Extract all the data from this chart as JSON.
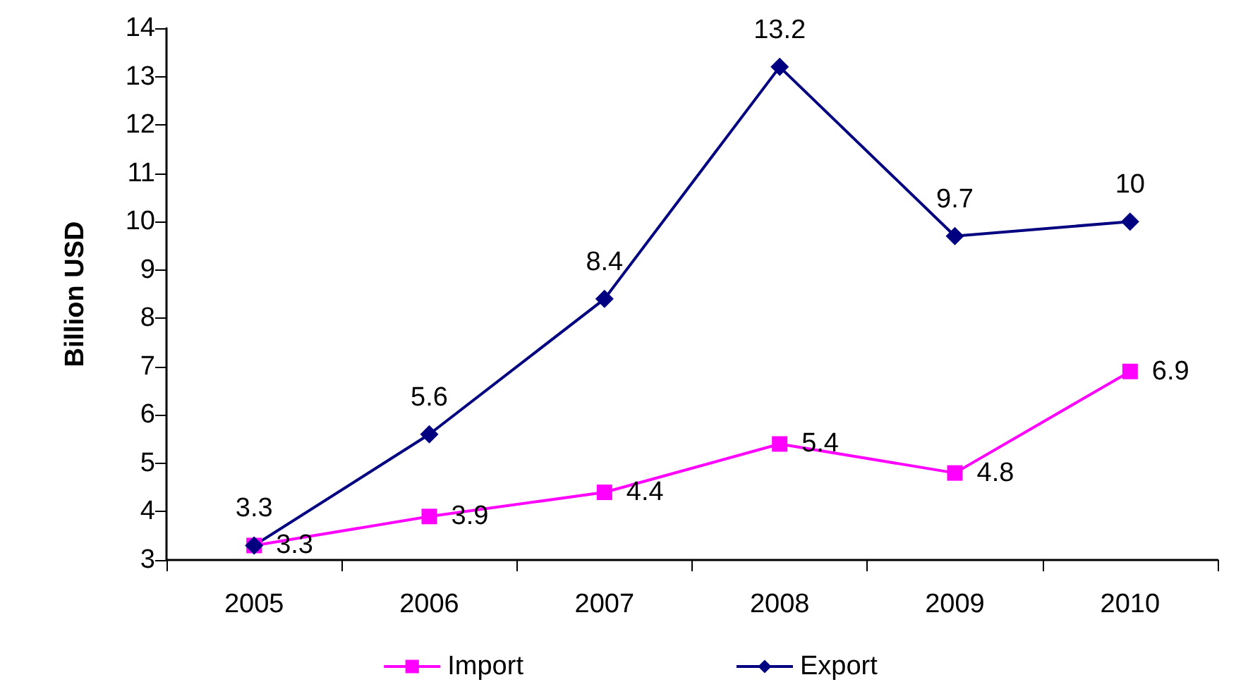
{
  "chart_data": {
    "type": "line",
    "ylabel": "Billion USD",
    "categories": [
      "2005",
      "2006",
      "2007",
      "2008",
      "2009",
      "2010"
    ],
    "series": [
      {
        "name": "Import",
        "color": "#ff00ff",
        "marker": "square",
        "values": [
          3.3,
          3.9,
          4.4,
          5.4,
          4.8,
          6.9
        ]
      },
      {
        "name": "Export",
        "color": "#000080",
        "marker": "diamond",
        "values": [
          3.3,
          5.6,
          8.4,
          13.2,
          9.7,
          10
        ]
      }
    ],
    "ylim": [
      3,
      14
    ],
    "yticks": [
      3,
      4,
      5,
      6,
      7,
      8,
      9,
      10,
      11,
      12,
      13,
      14
    ],
    "grid": false,
    "legend": "bottom",
    "data_labels": true,
    "line_style": "solid"
  }
}
